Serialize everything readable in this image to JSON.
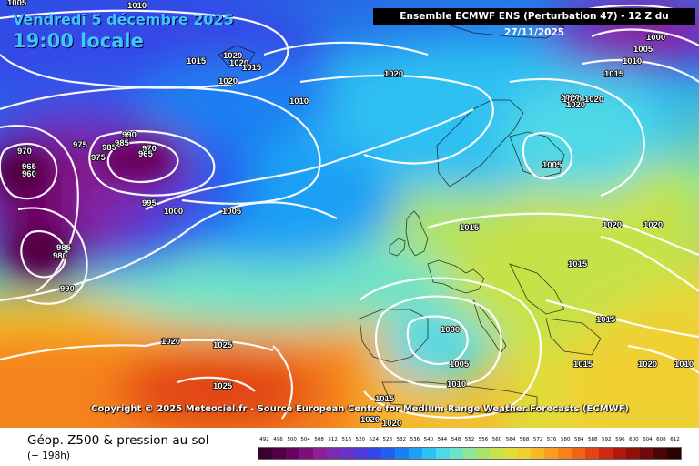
{
  "header": {
    "date": "Vendredi 5 décembre 2025",
    "local_time": "19:00 locale",
    "model_run": "Ensemble ECMWF ENS  (Perturbation 47)  -  12 Z du 27/11/2025"
  },
  "copyright": "Copyright © 2025 Meteociel.fr - Source European Centre for Medium-Range Weather Forecasts (ECMWF)",
  "legend": {
    "title": "Géop. Z500 & pression au sol",
    "subtitle": "(+ 198h)",
    "scale": {
      "values": [
        "492",
        "496",
        "500",
        "504",
        "508",
        "512",
        "516",
        "520",
        "524",
        "528",
        "532",
        "536",
        "540",
        "544",
        "548",
        "552",
        "556",
        "560",
        "564",
        "568",
        "572",
        "576",
        "580",
        "584",
        "588",
        "592",
        "596",
        "600",
        "604",
        "608",
        "612"
      ],
      "colors": [
        "#3a0030",
        "#520045",
        "#6a0060",
        "#7d0f7d",
        "#8c1e96",
        "#7c2aae",
        "#6a33c6",
        "#4f3bd9",
        "#3447e6",
        "#2060ee",
        "#1a7ff2",
        "#1ea0f4",
        "#2fc0f2",
        "#4fd8e6",
        "#6fe3c6",
        "#8fe69a",
        "#aae36a",
        "#c6e24a",
        "#dfde3a",
        "#f0d030",
        "#f6b828",
        "#f79e22",
        "#f5821c",
        "#ef6416",
        "#e24512",
        "#cc2a10",
        "#b0180e",
        "#90100c",
        "#6e0a0a",
        "#4a0606",
        "#2a0202"
      ]
    }
  },
  "map": {
    "isobar_labels": [
      "1005",
      "1010",
      "1015",
      "1020",
      "1020",
      "1015",
      "1020",
      "1010",
      "1020",
      "1020",
      "1000",
      "1005",
      "1010",
      "1015",
      "1020",
      "1020",
      "1020",
      "970",
      "965",
      "960",
      "975",
      "975",
      "985",
      "985",
      "990",
      "970",
      "965",
      "995",
      "1000",
      "1005",
      "1005",
      "985",
      "980",
      "990",
      "1015",
      "1020",
      "1020",
      "1025",
      "1020",
      "1015",
      "1015",
      "1015",
      "1000",
      "1005",
      "1010",
      "1015",
      "1020",
      "1020",
      "1020",
      "1010",
      "1025"
    ]
  }
}
